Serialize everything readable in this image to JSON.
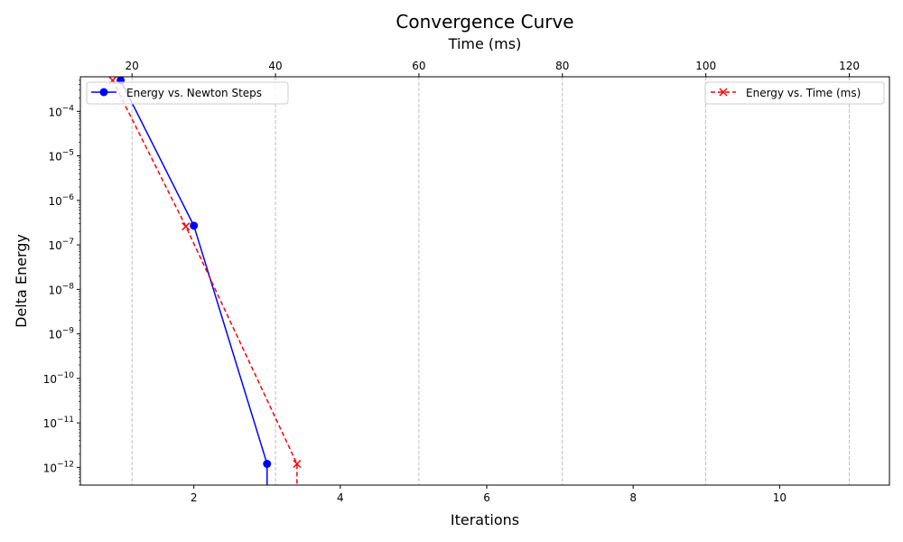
{
  "chart_data": {
    "type": "line",
    "title": "Convergence Curve",
    "xlabel": "Iterations",
    "x2label": "Time (ms)",
    "ylabel": "Delta Energy",
    "yscale": "log",
    "xlim": [
      0.45,
      11.5
    ],
    "x2lim": [
      12.8,
      125.6
    ],
    "ylim": [
      4e-13,
      0.0006
    ],
    "grid": "vertical dashed gray lines at top-axis ticks",
    "x_ticks": [
      {
        "value": 2,
        "label": "2"
      },
      {
        "value": 4,
        "label": "4"
      },
      {
        "value": 6,
        "label": "6"
      },
      {
        "value": 8,
        "label": "8"
      },
      {
        "value": 10,
        "label": "10"
      }
    ],
    "x2_ticks": [
      {
        "value": 20,
        "label": "20"
      },
      {
        "value": 40,
        "label": "40"
      },
      {
        "value": 60,
        "label": "60"
      },
      {
        "value": 80,
        "label": "80"
      },
      {
        "value": 100,
        "label": "100"
      },
      {
        "value": 120,
        "label": "120"
      }
    ],
    "y_ticks": [
      {
        "exp": -12,
        "base": "10",
        "sup": "−12"
      },
      {
        "exp": -11,
        "base": "10",
        "sup": "−11"
      },
      {
        "exp": -10,
        "base": "10",
        "sup": "−10"
      },
      {
        "exp": -9,
        "base": "10",
        "sup": "−9"
      },
      {
        "exp": -8,
        "base": "10",
        "sup": "−8"
      },
      {
        "exp": -7,
        "base": "10",
        "sup": "−7"
      },
      {
        "exp": -6,
        "base": "10",
        "sup": "−6"
      },
      {
        "exp": -5,
        "base": "10",
        "sup": "−5"
      },
      {
        "exp": -4,
        "base": "10",
        "sup": "−4"
      }
    ],
    "series": [
      {
        "name": "Energy vs. Newton Steps",
        "axis": "bottom",
        "color": "#0000ff",
        "linestyle": "solid",
        "marker": "circle",
        "x": [
          1,
          2,
          3,
          3
        ],
        "y": [
          0.0005,
          2.7e-07,
          1.2e-12,
          0
        ],
        "legend_location": "upper left"
      },
      {
        "name": "Energy vs. Time (ms)",
        "axis": "top",
        "color": "#ff0000",
        "linestyle": "dashed",
        "marker": "x",
        "x": [
          17.3,
          27.5,
          43.0,
          43.0
        ],
        "y": [
          0.0005,
          2.6e-07,
          1.2e-12,
          0
        ],
        "legend_location": "upper right"
      }
    ]
  }
}
